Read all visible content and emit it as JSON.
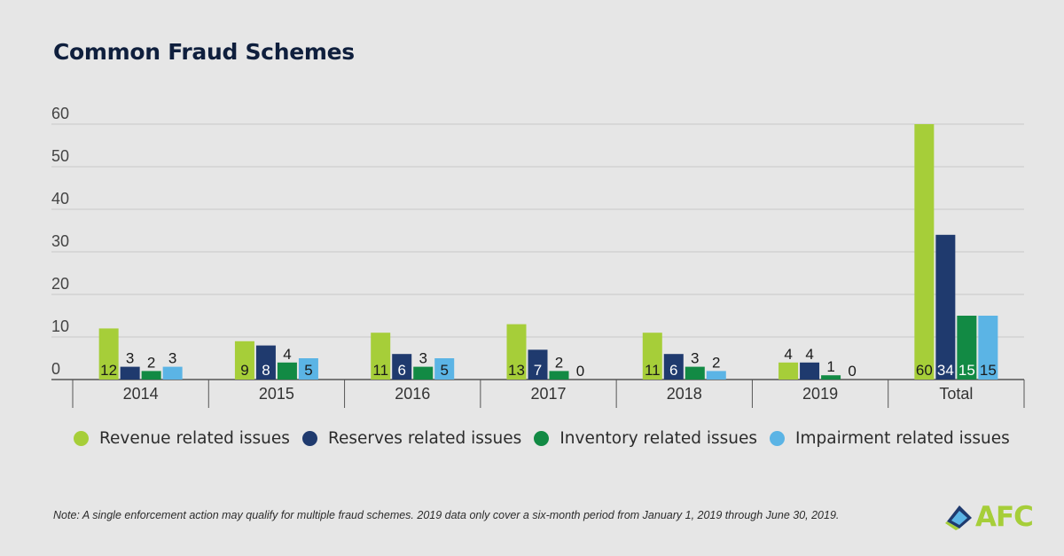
{
  "title": "Common Fraud Schemes",
  "note": "Note: A single enforcement action may qualify for multiple fraud schemes. 2019 data only cover a six-month period from January 1, 2019 through June 30, 2019.",
  "logo": {
    "text": "AFC"
  },
  "colors": {
    "revenue": "#a6ce39",
    "reserves": "#1f3a6e",
    "inventory": "#128a44",
    "impairment": "#5bb4e5",
    "grid": "#c8c8c8",
    "axis": "#555555"
  },
  "chart_data": {
    "type": "bar",
    "title": "Common Fraud Schemes",
    "categories": [
      "2014",
      "2015",
      "2016",
      "2017",
      "2018",
      "2019",
      "Total"
    ],
    "ylim": [
      0,
      60
    ],
    "yticks": [
      "0",
      "10",
      "20",
      "30",
      "40",
      "50",
      "60"
    ],
    "grid": true,
    "legend_position": "bottom",
    "series": [
      {
        "name": "Revenue related issues",
        "color": "#a6ce39",
        "values": [
          12,
          9,
          11,
          13,
          11,
          4,
          60
        ]
      },
      {
        "name": "Reserves related issues",
        "color": "#1f3a6e",
        "values": [
          3,
          8,
          6,
          7,
          6,
          4,
          34
        ]
      },
      {
        "name": "Inventory related issues",
        "color": "#128a44",
        "values": [
          2,
          4,
          3,
          2,
          3,
          1,
          15
        ]
      },
      {
        "name": "Impairment related issues",
        "color": "#5bb4e5",
        "values": [
          3,
          5,
          5,
          0,
          2,
          0,
          15
        ]
      }
    ]
  }
}
